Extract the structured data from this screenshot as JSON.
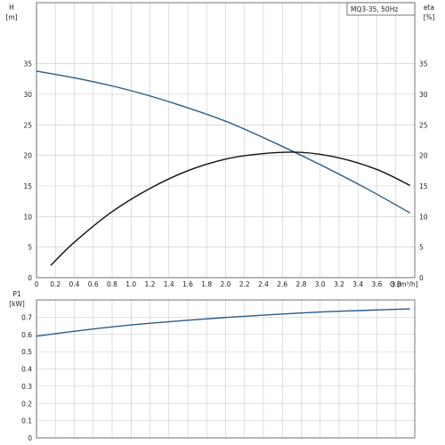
{
  "legend_text": "MQ3-35, 50Hz",
  "chart_data": [
    {
      "type": "line",
      "x_axis": {
        "label": "Q [m³/h]",
        "min": 0,
        "max": 4.0,
        "ticks": [
          0,
          0.2,
          0.4,
          0.6,
          0.8,
          1.0,
          1.2,
          1.4,
          1.6,
          1.8,
          2.0,
          2.2,
          2.4,
          2.6,
          2.8,
          3.0,
          3.2,
          3.4,
          3.6,
          3.8
        ],
        "tick_labels": [
          "0",
          "0.2",
          "0.4",
          "0.6",
          "0.8",
          "1.0",
          "1.2",
          "1.4",
          "1.6",
          "1.8",
          "2.0",
          "2.2",
          "2.4",
          "2.6",
          "2.8",
          "3.0",
          "3.2",
          "3.4",
          "3.6",
          "3.8"
        ]
      },
      "y_axis_left": {
        "label_line1": "H",
        "label_line2": "[m]",
        "min": 0,
        "max": 45,
        "ticks": [
          0,
          5,
          10,
          15,
          20,
          25,
          30,
          35
        ],
        "tick_labels": [
          "0",
          "5",
          "10",
          "15",
          "20",
          "25",
          "30",
          "35"
        ]
      },
      "y_axis_right": {
        "label_line1": "eta",
        "label_line2": "[%]",
        "min": 0,
        "max": 45,
        "ticks": [
          0,
          5,
          10,
          15,
          20,
          25,
          30,
          35
        ],
        "tick_labels": [
          "0",
          "5",
          "10",
          "15",
          "20",
          "25",
          "30",
          "35"
        ]
      },
      "grid": true,
      "series": [
        {
          "axis": "left",
          "color": "#2b5b8a",
          "x": [
            0,
            0.5,
            1.0,
            1.5,
            2.0,
            2.5,
            3.0,
            3.5,
            3.95
          ],
          "y": [
            33.8,
            32.4,
            30.6,
            28.3,
            25.6,
            22.2,
            18.5,
            14.5,
            10.6
          ]
        },
        {
          "axis": "right",
          "color": "#111111",
          "x": [
            0.15,
            0.4,
            0.8,
            1.2,
            1.6,
            2.0,
            2.4,
            2.8,
            3.2,
            3.6,
            3.95
          ],
          "y": [
            2.0,
            5.8,
            10.8,
            14.6,
            17.5,
            19.4,
            20.3,
            20.5,
            19.6,
            17.7,
            15.1
          ]
        }
      ]
    },
    {
      "type": "line",
      "x_axis": {
        "min": 0,
        "max": 4.0,
        "ticks": [
          0,
          0.2,
          0.4,
          0.6,
          0.8,
          1.0,
          1.2,
          1.4,
          1.6,
          1.8,
          2.0,
          2.2,
          2.4,
          2.6,
          2.8,
          3.0,
          3.2,
          3.4,
          3.6,
          3.8
        ]
      },
      "y_axis_left": {
        "label_line1": "P1",
        "label_line2": "[kW]",
        "min": 0,
        "max": 0.8,
        "ticks": [
          0,
          0.1,
          0.2,
          0.3,
          0.4,
          0.5,
          0.6,
          0.7
        ],
        "tick_labels": [
          "0",
          "0.1",
          "0.2",
          "0.3",
          "0.4",
          "0.5",
          "0.6",
          "0.7"
        ]
      },
      "grid": true,
      "series": [
        {
          "axis": "left",
          "color": "#2b5b8a",
          "x": [
            0,
            0.5,
            1.0,
            1.5,
            2.0,
            2.5,
            3.0,
            3.5,
            3.95
          ],
          "y": [
            0.59,
            0.625,
            0.655,
            0.678,
            0.698,
            0.715,
            0.73,
            0.74,
            0.748
          ]
        }
      ]
    }
  ]
}
